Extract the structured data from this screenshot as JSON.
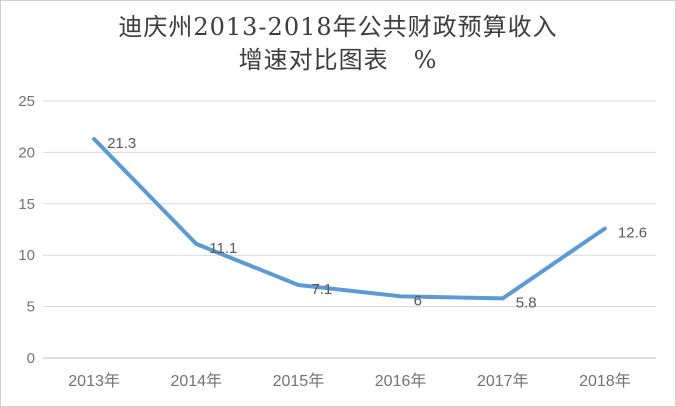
{
  "title": {
    "line1": "迪庆州2013-2018年公共财政预算收入",
    "line2": "增速对比图表　%"
  },
  "chart_data": {
    "type": "line",
    "categories": [
      "2013年",
      "2014年",
      "2015年",
      "2016年",
      "2017年",
      "2018年"
    ],
    "values": [
      21.3,
      11.1,
      7.1,
      6,
      5.8,
      12.6
    ],
    "point_labels": [
      "21.3",
      "11.1",
      "7.1",
      "6",
      "5.8",
      "12.6"
    ],
    "title": "迪庆州2013-2018年公共财政预算收入增速对比图表 %",
    "xlabel": "",
    "ylabel": "",
    "y_ticks": [
      0,
      5,
      10,
      15,
      20,
      25
    ],
    "ylim": [
      0,
      25
    ],
    "grid": "horizontal",
    "legend": "none",
    "colors": {
      "line": "#5B9BD5",
      "gridline": "#d9d9d9",
      "axis_line": "#bfbfbf",
      "tick_label": "#737373",
      "point_label": "#595959",
      "title": "#3d3d3d"
    }
  }
}
